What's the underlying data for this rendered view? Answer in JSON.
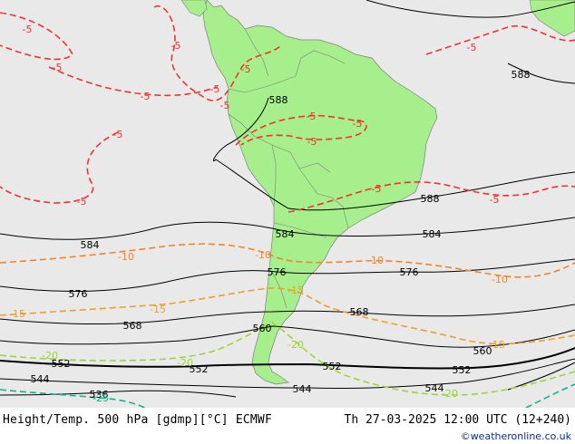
{
  "colors": {
    "ocean": "#e9e9e9",
    "land": "#a6ef8c",
    "border": "#7f7f7f",
    "height": "#000000",
    "temp_m5": "#f03232",
    "temp_m10": "#f28428",
    "temp_m15": "#e8a228",
    "temp_m20": "#9ad63a",
    "temp_m25": "#12b48c"
  },
  "map": {
    "height_labels": [
      "588",
      "588",
      "588",
      "584",
      "584",
      "584",
      "576",
      "576",
      "576",
      "568",
      "568",
      "560",
      "560",
      "552",
      "552",
      "552",
      "552",
      "544",
      "544",
      "544",
      "536"
    ],
    "temp_labels": [
      "-5",
      "-5",
      "-5",
      "-5",
      "-5",
      "-5",
      "-5",
      "-5",
      "-5",
      "-5",
      "-5",
      "-5",
      "-5",
      "-5",
      "-5",
      "-10",
      "-10",
      "-10",
      "-10",
      "-15",
      "-15",
      "-15",
      "-15",
      "-20",
      "-20",
      "-20",
      "-20",
      "-25"
    ]
  },
  "footer": {
    "title": "Height/Temp. 500 hPa [gdmp][°C] ECMWF",
    "datetime": "Th 27-03-2025 12:00 UTC (12+240)",
    "credit": "©weatheronline.co.uk"
  }
}
